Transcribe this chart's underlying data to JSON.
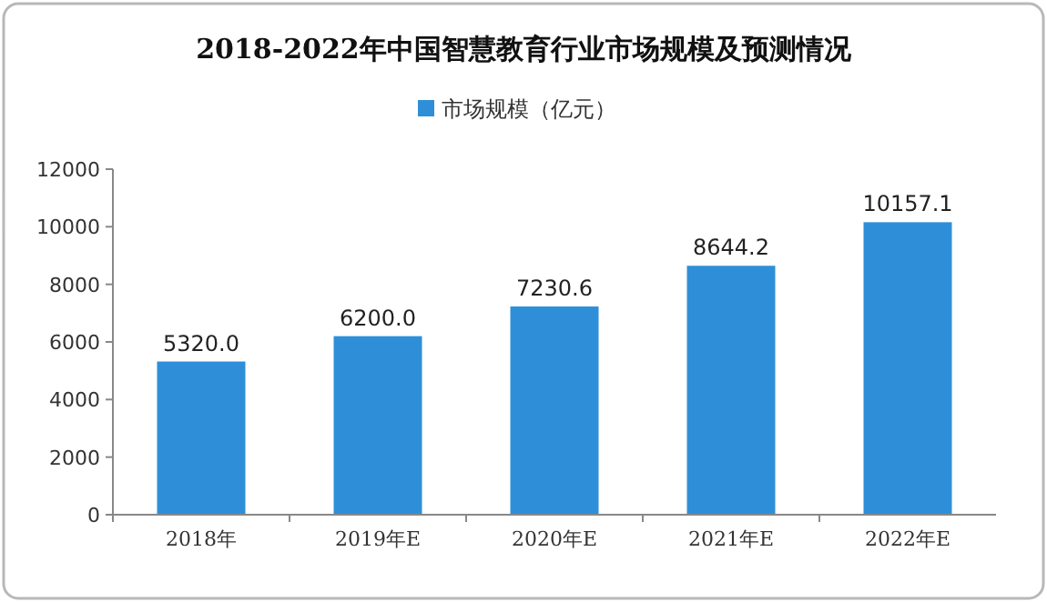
{
  "chart_data": {
    "type": "bar",
    "title": "2018-2022年中国智慧教育行业市场规模及预测情况",
    "categories": [
      "2018年",
      "2019年E",
      "2020年E",
      "2021年E",
      "2022年E"
    ],
    "series": [
      {
        "name": "市场规模（亿元）",
        "color": "#2e8fd8",
        "values": [
          5320.0,
          6200.0,
          7230.6,
          8644.2,
          10157.1
        ]
      }
    ],
    "value_labels": [
      "5320.0",
      "6200.0",
      "7230.6",
      "8644.2",
      "10157.1"
    ],
    "ylim": [
      0,
      12000
    ],
    "yticks": [
      0,
      2000,
      4000,
      6000,
      8000,
      10000,
      12000
    ],
    "grid": false,
    "legend": "top"
  }
}
